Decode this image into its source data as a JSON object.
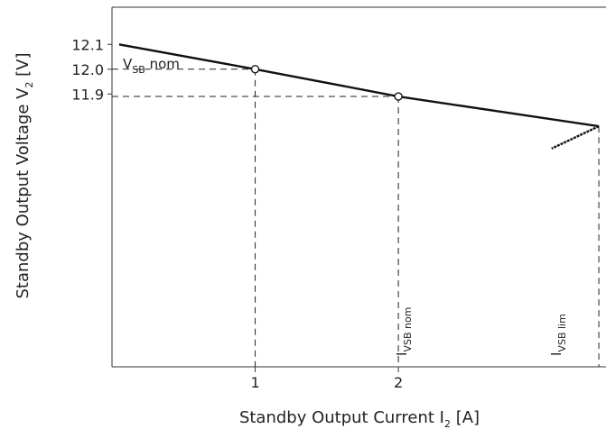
{
  "chart_data": {
    "type": "line",
    "xlabel": {
      "main": "Standby Output Current I",
      "sub": "2",
      "unit": " [A]"
    },
    "ylabel": {
      "main": "Standby Output Voltage V",
      "sub": "2",
      "unit": " [V]"
    },
    "x_ticks": [
      {
        "value": 1,
        "label": "1"
      },
      {
        "value": 2,
        "label": "2"
      }
    ],
    "y_ticks": [
      {
        "value": 12.1,
        "label": "12.1"
      },
      {
        "value": 12.0,
        "label": "12.0"
      },
      {
        "value": 11.9,
        "label": "11.9"
      }
    ],
    "xlim": [
      0,
      3.45
    ],
    "ylim": [
      10.8,
      12.25
    ],
    "series": [
      {
        "x": [
          0.05,
          1.0,
          2.0,
          3.4
        ],
        "y": [
          12.1,
          12.0,
          11.89,
          11.77
        ]
      }
    ],
    "foldback": {
      "x": [
        3.4,
        3.07
      ],
      "y": [
        11.77,
        11.68
      ]
    },
    "markers": [
      {
        "x": 1.0,
        "y": 12.0
      },
      {
        "x": 2.0,
        "y": 11.89
      }
    ],
    "annotations": {
      "vsb_nom": {
        "main": "V",
        "sub": "SB",
        "tail": " nom"
      },
      "ivsb_nom": {
        "main": "I",
        "sub": "VSB nom"
      },
      "ivsb_lim": {
        "main": "I",
        "sub": "VSB lim"
      }
    },
    "grid": false,
    "line_color": "#111111"
  }
}
